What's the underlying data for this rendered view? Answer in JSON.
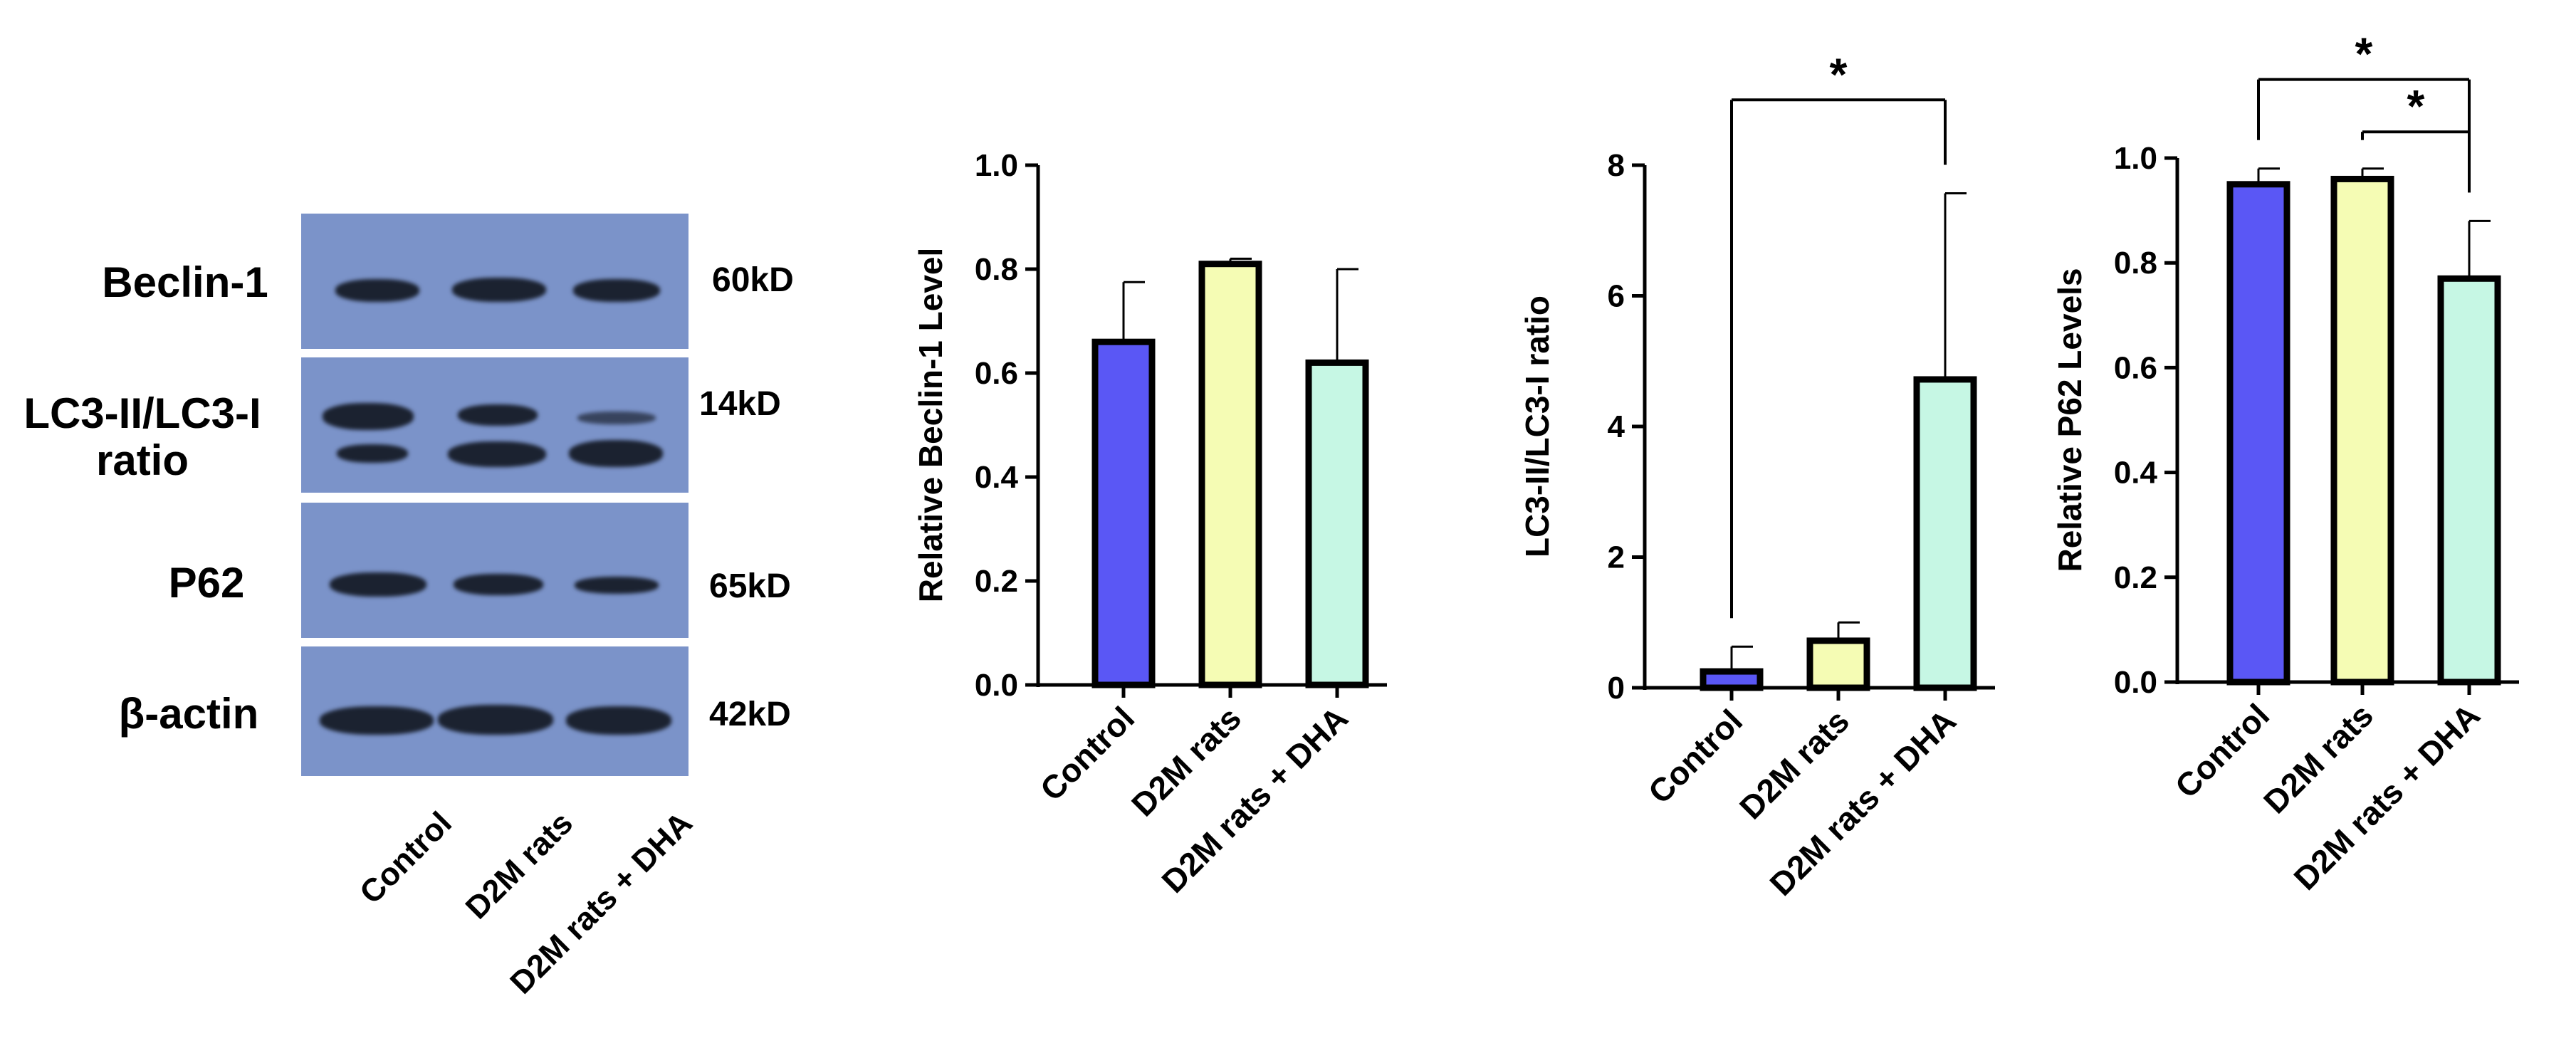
{
  "western_blot": {
    "proteins": [
      {
        "name": "Beclin-1",
        "kd": "60kD"
      },
      {
        "name": "LC3-II/LC3-I ratio",
        "kd": "14kD"
      },
      {
        "name": "P62",
        "kd": "65kD"
      },
      {
        "name": "β-actin",
        "kd": "42kD"
      }
    ],
    "lanes": [
      "Control",
      "D2M rats",
      "D2M rats + DHA"
    ],
    "colors": {
      "panel": "#7b93c9",
      "band": "#1b2230"
    }
  },
  "colors": {
    "control": "#5a57f5",
    "d2m": "#f5fcb4",
    "dha": "#c6f7e4"
  },
  "chart_data": [
    {
      "type": "bar",
      "title": "",
      "xlabel": "",
      "ylabel": "Relative Beclin-1 Level",
      "categories": [
        "Control",
        "D2M rats",
        "D2M rats + DHA"
      ],
      "values": [
        0.66,
        0.81,
        0.62
      ],
      "errors": [
        0.115,
        0.01,
        0.18
      ],
      "ylim": [
        0,
        1.0
      ],
      "yticks": [
        0.0,
        0.2,
        0.4,
        0.6,
        0.8,
        1.0
      ],
      "tick_labels": [
        "0.0",
        "0.2",
        "0.4",
        "0.6",
        "0.8",
        "1.0"
      ],
      "significance": []
    },
    {
      "type": "bar",
      "title": "",
      "xlabel": "",
      "ylabel": "LC3-II/LC3-I ratio",
      "categories": [
        "Control",
        "D2M rats",
        "D2M rats + DHA"
      ],
      "values": [
        0.25,
        0.72,
        4.72
      ],
      "errors": [
        0.38,
        0.28,
        2.85
      ],
      "ylim": [
        0,
        8
      ],
      "yticks": [
        0,
        2,
        4,
        6,
        8
      ],
      "tick_labels": [
        "0",
        "2",
        "4",
        "6",
        "8"
      ],
      "significance": [
        {
          "from": 0,
          "to": 2,
          "label": "*",
          "y": 9.0
        }
      ]
    },
    {
      "type": "bar",
      "title": "",
      "xlabel": "",
      "ylabel": "Relative P62 Levels",
      "categories": [
        "Control",
        "D2M rats",
        "D2M rats + DHA"
      ],
      "values": [
        0.95,
        0.96,
        0.77
      ],
      "errors": [
        0.03,
        0.02,
        0.11
      ],
      "ylim": [
        0,
        1.0
      ],
      "yticks": [
        0.0,
        0.2,
        0.4,
        0.6,
        0.8,
        1.0
      ],
      "tick_labels": [
        "0.0",
        "0.2",
        "0.4",
        "0.6",
        "0.8",
        "1.0"
      ],
      "significance": [
        {
          "from": 0,
          "to": 2,
          "label": "*",
          "y": 1.15
        },
        {
          "from": 1,
          "to": 2,
          "label": "*",
          "y": 1.05
        }
      ]
    }
  ]
}
